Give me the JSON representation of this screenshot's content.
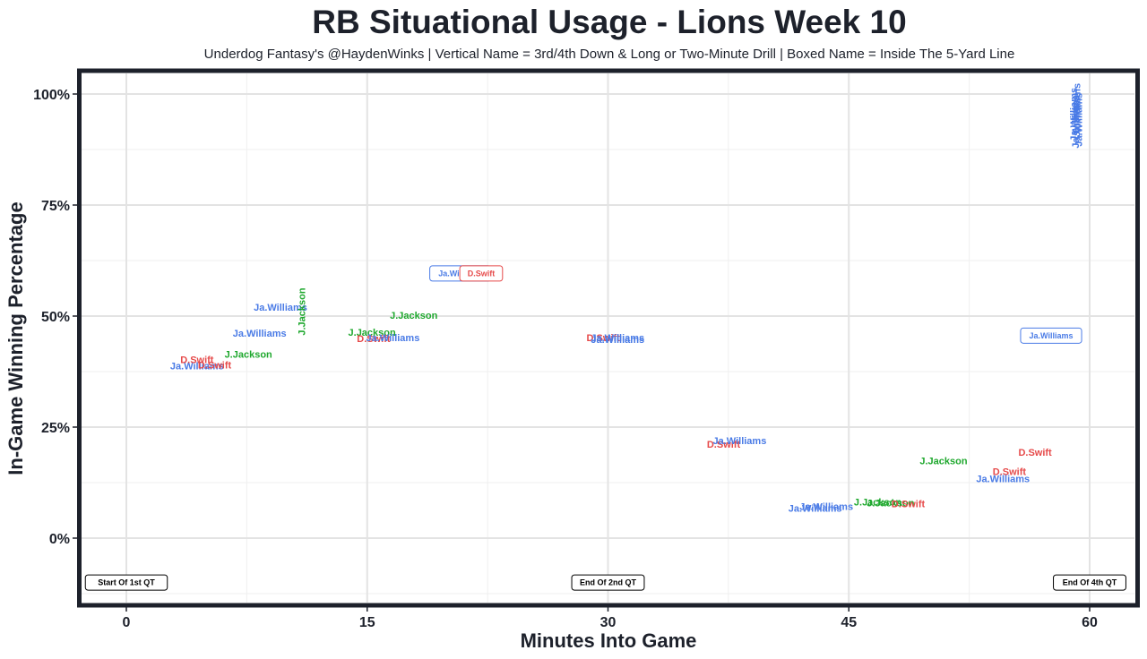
{
  "chart_data": {
    "type": "scatter",
    "title": "RB Situational Usage - Lions Week 10",
    "subtitle": "Underdog Fantasy's @HaydenWinks | Vertical Name = 3rd/4th Down & Long or Two-Minute Drill | Boxed Name = Inside The 5-Yard Line",
    "xlabel": "Minutes Into Game",
    "ylabel": "In-Game Winning Percentage",
    "xlim": [
      -3,
      63
    ],
    "ylim": [
      -15,
      105
    ],
    "x_ticks": [
      {
        "value": 0,
        "label": "0"
      },
      {
        "value": 15,
        "label": "15"
      },
      {
        "value": 30,
        "label": "30"
      },
      {
        "value": 45,
        "label": "45"
      },
      {
        "value": 60,
        "label": "60"
      }
    ],
    "y_ticks": [
      {
        "value": 0,
        "label": "0%"
      },
      {
        "value": 25,
        "label": "25%"
      },
      {
        "value": 50,
        "label": "50%"
      },
      {
        "value": 75,
        "label": "75%"
      },
      {
        "value": 100,
        "label": "100%"
      }
    ],
    "grid": true,
    "colors": {
      "Ja.Williams": "#4a7be6",
      "D.Swift": "#e64a4a",
      "J.Jackson": "#1fa82e"
    },
    "points": [
      {
        "player": "Ja.Williams",
        "x": 4.4,
        "y": 38.8,
        "style": "normal"
      },
      {
        "player": "D.Swift",
        "x": 4.4,
        "y": 40.2,
        "style": "normal"
      },
      {
        "player": "D.Swift",
        "x": 5.5,
        "y": 39.0,
        "style": "normal"
      },
      {
        "player": "J.Jackson",
        "x": 7.6,
        "y": 41.4,
        "style": "normal"
      },
      {
        "player": "Ja.Williams",
        "x": 8.3,
        "y": 46.2,
        "style": "normal"
      },
      {
        "player": "Ja.Williams",
        "x": 9.6,
        "y": 52.0,
        "style": "normal"
      },
      {
        "player": "J.Jackson",
        "x": 10.9,
        "y": 51.0,
        "style": "vertical"
      },
      {
        "player": "J.Jackson",
        "x": 15.3,
        "y": 46.4,
        "style": "normal"
      },
      {
        "player": "D.Swift",
        "x": 15.4,
        "y": 45.0,
        "style": "normal"
      },
      {
        "player": "Ja.Williams",
        "x": 16.6,
        "y": 45.2,
        "style": "normal"
      },
      {
        "player": "J.Jackson",
        "x": 17.9,
        "y": 50.2,
        "style": "normal"
      },
      {
        "player": "Ja.Williams",
        "x": 20.6,
        "y": 59.6,
        "style": "normal"
      },
      {
        "player": "Ja.Williams",
        "x": 20.8,
        "y": 59.6,
        "style": "boxed"
      },
      {
        "player": "D.Swift",
        "x": 22.1,
        "y": 59.6,
        "style": "boxed"
      },
      {
        "player": "D.Swift",
        "x": 29.7,
        "y": 45.2,
        "style": "normal"
      },
      {
        "player": "Ja.Williams",
        "x": 30.6,
        "y": 45.2,
        "style": "normal"
      },
      {
        "player": "Ja.Williams",
        "x": 30.6,
        "y": 44.8,
        "style": "normal"
      },
      {
        "player": "D.Swift",
        "x": 37.2,
        "y": 21.2,
        "style": "normal"
      },
      {
        "player": "Ja.Williams",
        "x": 38.2,
        "y": 22.0,
        "style": "normal"
      },
      {
        "player": "Ja.Williams",
        "x": 43.6,
        "y": 7.2,
        "style": "normal"
      },
      {
        "player": "Ja.Williams",
        "x": 42.9,
        "y": 6.8,
        "style": "normal"
      },
      {
        "player": "J.Jackson",
        "x": 46.8,
        "y": 8.2,
        "style": "normal"
      },
      {
        "player": "J.Jackson",
        "x": 47.6,
        "y": 8.0,
        "style": "normal"
      },
      {
        "player": "D.Swift",
        "x": 48.7,
        "y": 7.8,
        "style": "normal"
      },
      {
        "player": "J.Jackson",
        "x": 50.9,
        "y": 17.4,
        "style": "normal"
      },
      {
        "player": "D.Swift",
        "x": 55.0,
        "y": 15.0,
        "style": "normal"
      },
      {
        "player": "Ja.Williams",
        "x": 54.6,
        "y": 13.4,
        "style": "normal"
      },
      {
        "player": "D.Swift",
        "x": 56.6,
        "y": 19.4,
        "style": "normal"
      },
      {
        "player": "Ja.Williams",
        "x": 57.6,
        "y": 45.6,
        "style": "boxed"
      },
      {
        "player": "Ja.Williams",
        "x": 59.0,
        "y": 95.4,
        "style": "vertical"
      },
      {
        "player": "Ja.Williams",
        "x": 59.1,
        "y": 93.8,
        "style": "vertical"
      },
      {
        "player": "Ja.Williams",
        "x": 59.2,
        "y": 96.4,
        "style": "vertical"
      },
      {
        "player": "Ja.Williams",
        "x": 59.3,
        "y": 94.2,
        "style": "vertical"
      }
    ],
    "quarter_labels": [
      {
        "text": "Start Of 1st QT",
        "x": 0,
        "y": -10
      },
      {
        "text": "End Of 2nd QT",
        "x": 30,
        "y": -10
      },
      {
        "text": "End Of 4th QT",
        "x": 60,
        "y": -10
      }
    ]
  }
}
